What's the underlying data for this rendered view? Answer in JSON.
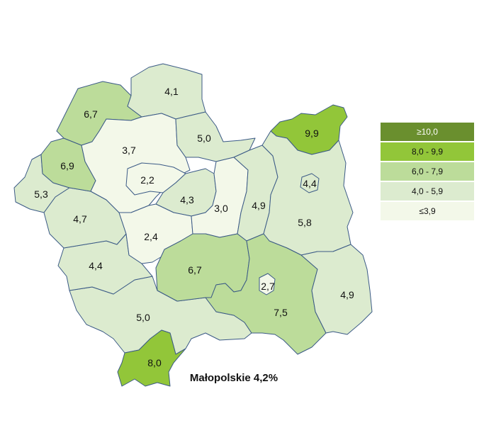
{
  "title": "Małopolskie 4,2%",
  "colors": {
    "border": "#3b5a86",
    "very_light": "#f3f8e9",
    "light": "#dcebcf",
    "medium": "#bcdc9a",
    "bright": "#92c639",
    "dark": "#6a8f2e"
  },
  "legend": [
    {
      "label": "≥10,0",
      "color": "#6a8f2e"
    },
    {
      "label": "8,0 -  9,9",
      "color": "#92c639"
    },
    {
      "label": "6,0 -  7,9",
      "color": "#bcdc9a"
    },
    {
      "label": "4,0 -  5,9",
      "color": "#dcebcf"
    },
    {
      "label": "≤3,9",
      "color": "#f3f8e9"
    }
  ],
  "regions": [
    {
      "id": "miechowski",
      "value": 4.1,
      "label": "4,1",
      "class": "light"
    },
    {
      "id": "olkuski",
      "value": 6.7,
      "label": "6,7",
      "class": "medium"
    },
    {
      "id": "krakowski",
      "value": 3.7,
      "label": "3,7",
      "class": "very_light"
    },
    {
      "id": "proszowicki",
      "value": 5.0,
      "label": "5,0",
      "class": "light"
    },
    {
      "id": "dabrowski",
      "value": 9.9,
      "label": "9,9",
      "class": "bright"
    },
    {
      "id": "chrzanowski",
      "value": 6.9,
      "label": "6,9",
      "class": "medium"
    },
    {
      "id": "oswiecimski",
      "value": 5.3,
      "label": "5,3",
      "class": "light"
    },
    {
      "id": "krakow-city",
      "value": 2.2,
      "label": "2,2",
      "class": "very_light"
    },
    {
      "id": "wielicki",
      "value": 4.3,
      "label": "4,3",
      "class": "light"
    },
    {
      "id": "bochenski",
      "value": 3.0,
      "label": "3,0",
      "class": "very_light"
    },
    {
      "id": "brzeski",
      "value": 4.9,
      "label": "4,9",
      "class": "light"
    },
    {
      "id": "tarnow-city",
      "value": 4.4,
      "label": "4,4",
      "class": "light"
    },
    {
      "id": "tarnowski",
      "value": 5.8,
      "label": "5,8",
      "class": "light"
    },
    {
      "id": "wadowicki",
      "value": 4.7,
      "label": "4,7",
      "class": "light"
    },
    {
      "id": "myslenicki",
      "value": 2.4,
      "label": "2,4",
      "class": "very_light"
    },
    {
      "id": "suski",
      "value": 4.4,
      "label": "4,4",
      "class": "light"
    },
    {
      "id": "limanowski",
      "value": 6.7,
      "label": "6,7",
      "class": "medium"
    },
    {
      "id": "nowy-sacz-city",
      "value": 2.7,
      "label": "2,7",
      "class": "very_light"
    },
    {
      "id": "nowosadecki",
      "value": 7.5,
      "label": "7,5",
      "class": "medium"
    },
    {
      "id": "gorlicki",
      "value": 4.9,
      "label": "4,9",
      "class": "light"
    },
    {
      "id": "nowotarski",
      "value": 5.0,
      "label": "5,0",
      "class": "light"
    },
    {
      "id": "tatrzanski",
      "value": 8.0,
      "label": "8,0",
      "class": "bright"
    }
  ]
}
